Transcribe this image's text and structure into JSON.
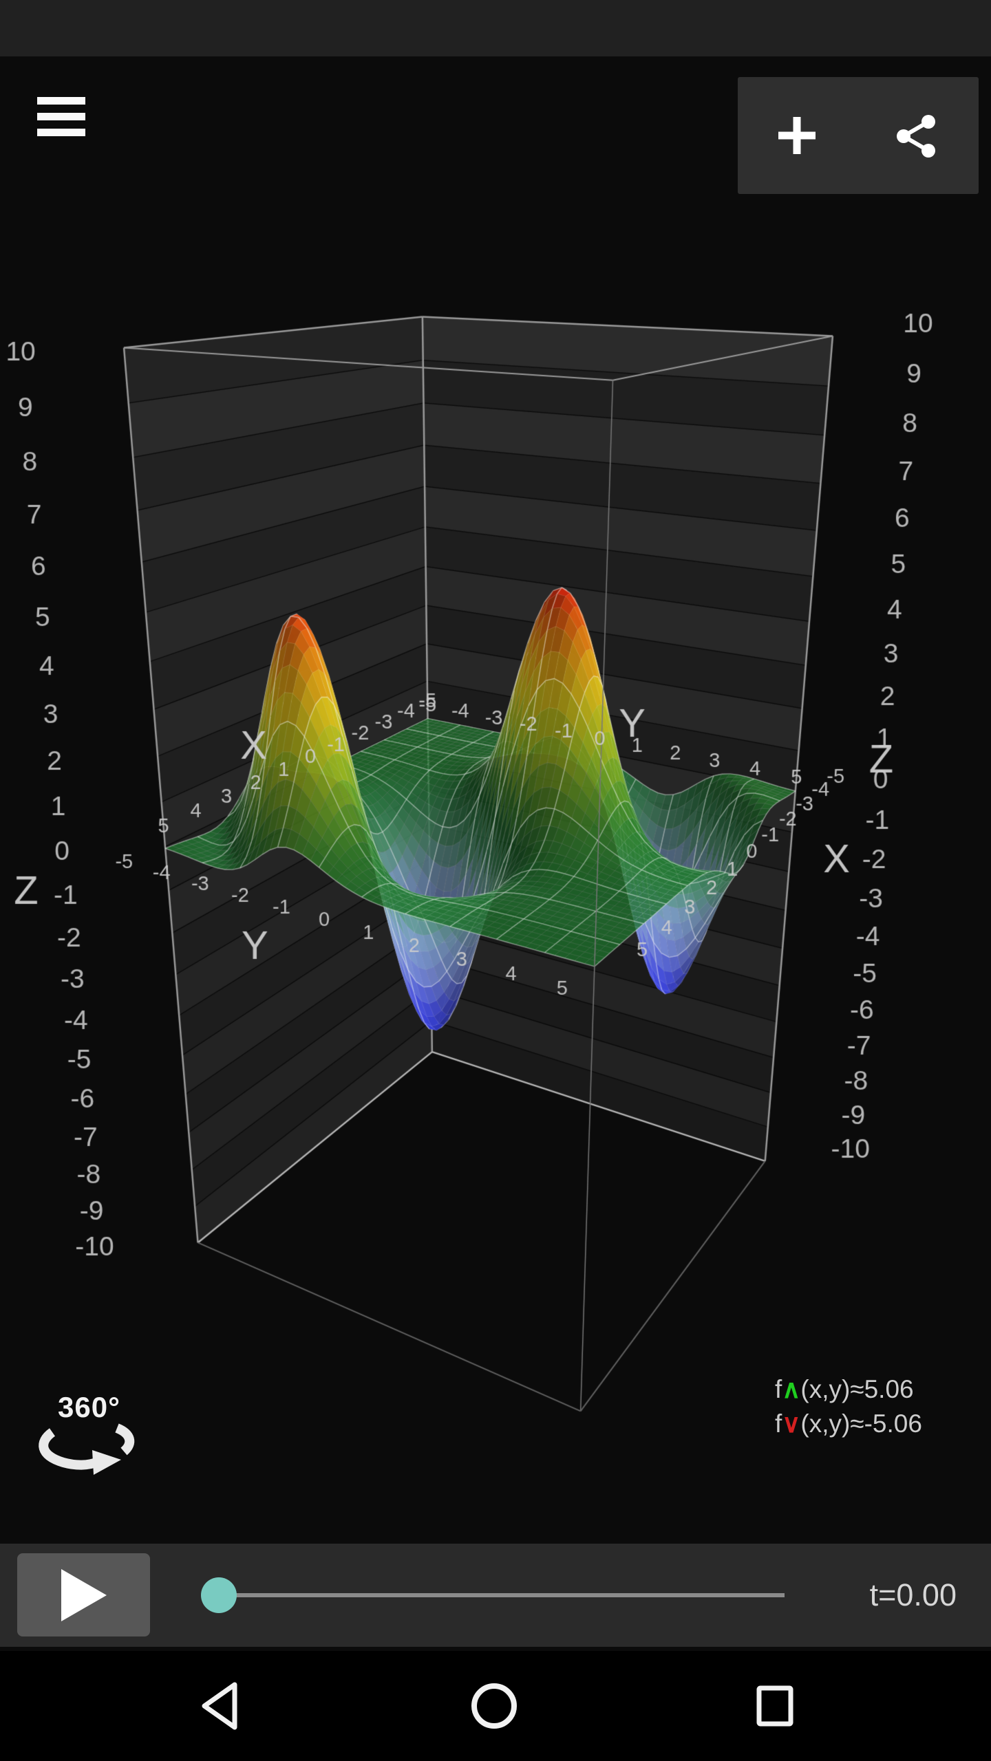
{
  "header": {
    "add_label": "+",
    "panel_color": "#2f2f2f"
  },
  "chart_data": {
    "type": "surface3d",
    "title": "",
    "axis_labels": {
      "x": "X",
      "y": "Y",
      "z": "Z"
    },
    "x_range": [
      -5,
      5
    ],
    "y_range": [
      -5,
      5
    ],
    "z_range": [
      -10,
      10
    ],
    "x_ticks": [
      -5,
      -4,
      -3,
      -2,
      -1,
      0,
      1,
      2,
      3,
      4,
      5
    ],
    "y_ticks": [
      -5,
      -4,
      -3,
      -2,
      -1,
      0,
      1,
      2,
      3,
      4,
      5
    ],
    "z_ticks": [
      10,
      9,
      8,
      7,
      6,
      5,
      4,
      3,
      2,
      1,
      0,
      -1,
      -2,
      -3,
      -4,
      -5,
      -6,
      -7,
      -8,
      -9,
      -10
    ],
    "extrema": {
      "max": 5.06,
      "min": -5.06
    },
    "surface": {
      "description": "wave packet along the x=-y diagonal at t=0: two peaks and two valleys on a flat plane",
      "amplitude": 5.06,
      "diag_half_period": 4,
      "envelope_divisor": 7,
      "cutoff": 7.4,
      "mesh_step": 0.2,
      "mesh_color": "#ffffff"
    },
    "colormap": [
      [
        -5.1,
        "#2b33cf"
      ],
      [
        -4.0,
        "#4952dd"
      ],
      [
        -3.0,
        "#7b8fd9"
      ],
      [
        -2.0,
        "#83a7cc"
      ],
      [
        -1.2,
        "#55a07a"
      ],
      [
        -0.5,
        "#2c8046"
      ],
      [
        0.0,
        "#1d6e2a"
      ],
      [
        0.6,
        "#35832a"
      ],
      [
        1.3,
        "#6ba426"
      ],
      [
        2.1,
        "#a8bd20"
      ],
      [
        3.0,
        "#ddc31c"
      ],
      [
        3.8,
        "#e39a16"
      ],
      [
        4.5,
        "#df5f12"
      ],
      [
        5.1,
        "#c41a0e"
      ]
    ],
    "wall_colors": {
      "left_band_a": "#232323",
      "left_band_b": "#2b2b2b",
      "right_band_a": "#2b2b2b",
      "right_band_b": "#202020",
      "separator": "rgba(8,8,8,0.9)",
      "floor": "#0b0b0b",
      "edge_bright": "#9a9a9a",
      "edge_bottom": "#b5b5b5",
      "edge_dim": "#606060",
      "tick_color": "rgba(205,205,205,0.92)"
    }
  },
  "readout": {
    "max": {
      "prefix": "f",
      "symbol": "∧",
      "symbol_color": "#1fcf1f",
      "rest": "(x,y)≈5.06"
    },
    "min": {
      "prefix": "f",
      "symbol": "∨",
      "symbol_color": "#d42020",
      "rest": "(x,y)≈-5.06"
    }
  },
  "rotate_badge": {
    "label": "360°"
  },
  "playback": {
    "time_label": "t=0.00",
    "progress": 0,
    "thumb_color": "#79cbc1",
    "track_color": "#8b8b8b"
  },
  "nav_bar": {
    "back": "back",
    "home": "home",
    "recents": "recents"
  }
}
